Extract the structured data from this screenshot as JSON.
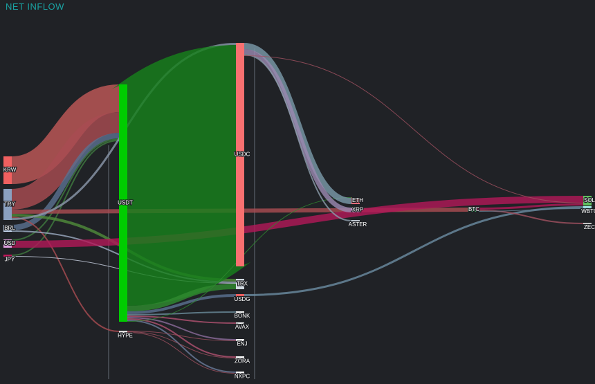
{
  "chart_data": {
    "type": "sankey",
    "title": "NET INFLOW",
    "nodes": [
      {
        "name": "KRW",
        "color": "#f06060"
      },
      {
        "name": "TRY",
        "color": "#8aa0c0"
      },
      {
        "name": "BRL",
        "color": "#c8d8f0"
      },
      {
        "name": "USD",
        "color": "#e0a0e0"
      },
      {
        "name": "JPY",
        "color": "#c0185a"
      },
      {
        "name": "USDT",
        "color": "#00cc00"
      },
      {
        "name": "HYPE",
        "color": "#e0e0e0"
      },
      {
        "name": "USDC",
        "color": "#f87070"
      },
      {
        "name": "TRX",
        "color": "#d0d8e0"
      },
      {
        "name": "USDG",
        "color": "#f06060"
      },
      {
        "name": "BONK",
        "color": "#ffffff"
      },
      {
        "name": "AVAX",
        "color": "#ffffff"
      },
      {
        "name": "ENJ",
        "color": "#ffffff"
      },
      {
        "name": "ZORA",
        "color": "#ffffff"
      },
      {
        "name": "NXPC",
        "color": "#ffffff"
      },
      {
        "name": "ETH",
        "color": "#f07080"
      },
      {
        "name": "XRP",
        "color": "#e0a0e0"
      },
      {
        "name": "ASTER",
        "color": "#c0c8d0"
      },
      {
        "name": "BTC",
        "color": "#40a060"
      },
      {
        "name": "SOL",
        "color": "#60c060"
      },
      {
        "name": "WBTC",
        "color": "#a0e8e8"
      },
      {
        "name": "ZEC",
        "color": "#d0d0d0"
      }
    ],
    "links": [
      {
        "source": 0,
        "target": 5,
        "value": 40,
        "color": "#c05858"
      },
      {
        "source": 1,
        "target": 5,
        "value": 30,
        "color": "#a84c52"
      },
      {
        "source": 2,
        "target": 5,
        "value": 8,
        "color": "#5a7090"
      },
      {
        "source": 3,
        "target": 5,
        "value": 2,
        "color": "#3f7a3f"
      },
      {
        "source": 4,
        "target": 5,
        "value": 2,
        "color": "#3f7a3f"
      },
      {
        "source": 1,
        "target": 18,
        "value": 6,
        "color": "#a84c52"
      },
      {
        "source": 1,
        "target": 8,
        "value": 4,
        "color": "#4f8a3a"
      },
      {
        "source": 1,
        "target": 6,
        "value": 2,
        "color": "#a84c52"
      },
      {
        "source": 1,
        "target": 7,
        "value": 3,
        "color": "#8a96aa"
      },
      {
        "source": 2,
        "target": 8,
        "value": 2,
        "color": "#9aa8c0"
      },
      {
        "source": 3,
        "target": 19,
        "value": 10,
        "color": "#b01858"
      },
      {
        "source": 4,
        "target": 8,
        "value": 1,
        "color": "#c8d0e0"
      },
      {
        "source": 5,
        "target": 7,
        "value": 320,
        "color": "#17801c"
      },
      {
        "source": 5,
        "target": 8,
        "value": 8,
        "color": "#2f8a2f"
      },
      {
        "source": 5,
        "target": 9,
        "value": 4,
        "color": "#5a7090"
      },
      {
        "source": 5,
        "target": 10,
        "value": 2,
        "color": "#6a8a9a"
      },
      {
        "source": 5,
        "target": 11,
        "value": 2,
        "color": "#b05070"
      },
      {
        "source": 5,
        "target": 12,
        "value": 2,
        "color": "#8a6a9a"
      },
      {
        "source": 5,
        "target": 13,
        "value": 2,
        "color": "#b05070"
      },
      {
        "source": 5,
        "target": 14,
        "value": 2,
        "color": "#6a7a9a"
      },
      {
        "source": 5,
        "target": 15,
        "value": 1,
        "color": "#2f8a2f"
      },
      {
        "source": 6,
        "target": 12,
        "value": 1,
        "color": "#a05060"
      },
      {
        "source": 6,
        "target": 13,
        "value": 1,
        "color": "#a05060"
      },
      {
        "source": 6,
        "target": 14,
        "value": 1,
        "color": "#a05060"
      },
      {
        "source": 7,
        "target": 15,
        "value": 9,
        "color": "#7a98a8"
      },
      {
        "source": 7,
        "target": 16,
        "value": 7,
        "color": "#9a88b0"
      },
      {
        "source": 7,
        "target": 17,
        "value": 2,
        "color": "#8a9aa8"
      },
      {
        "source": 7,
        "target": 19,
        "value": 1,
        "color": "#a05060"
      },
      {
        "source": 9,
        "target": 20,
        "value": 3,
        "color": "#6a8aa0"
      },
      {
        "source": 18,
        "target": 19,
        "value": 3,
        "color": "#b01858"
      },
      {
        "source": 18,
        "target": 21,
        "value": 2,
        "color": "#a05060"
      },
      {
        "source": 18,
        "target": 20,
        "value": 1,
        "color": "#6a8aa0"
      }
    ]
  }
}
